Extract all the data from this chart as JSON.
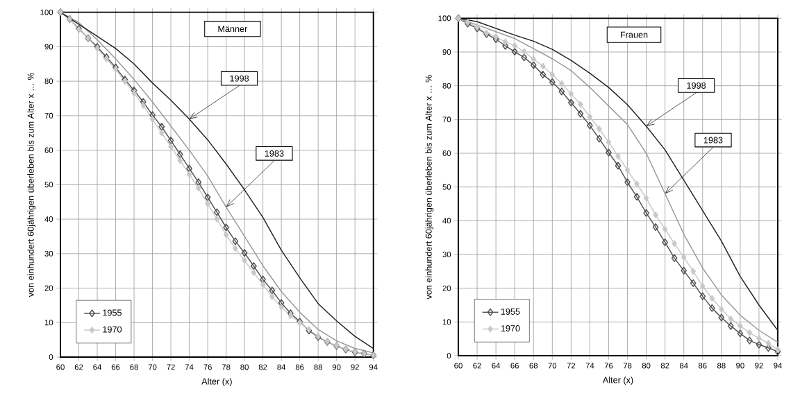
{
  "chart_data": [
    {
      "type": "line",
      "xlabel": "Alter (x)",
      "ylabel": "von einhundert 60jährigen überleben bis zum Alter x … %",
      "xlim": [
        60,
        94
      ],
      "ylim": [
        0,
        100
      ],
      "xticks": [
        60,
        62,
        64,
        66,
        68,
        70,
        72,
        74,
        76,
        78,
        80,
        82,
        84,
        86,
        88,
        90,
        92,
        94
      ],
      "yticks": [
        0,
        10,
        20,
        30,
        40,
        50,
        60,
        70,
        80,
        90,
        100
      ],
      "grid": true,
      "legend": "bottom left",
      "annotations": [
        "Männer",
        {
          "text": "1998",
          "x": 74,
          "y": 69
        },
        {
          "text": "1983",
          "x": 78,
          "y": 43.5
        }
      ],
      "series": [
        {
          "name": "1955",
          "color": "#505050",
          "marker": "diamond",
          "x": [
            60,
            61,
            62,
            63,
            64,
            65,
            66,
            67,
            68,
            69,
            70,
            71,
            72,
            73,
            74,
            75,
            76,
            77,
            78,
            79,
            80,
            81,
            82,
            83,
            84,
            85,
            86,
            87,
            88,
            89,
            90,
            91,
            92,
            93,
            94
          ],
          "values": [
            100,
            98,
            95.2,
            92.5,
            90,
            87,
            84,
            80.5,
            77.3,
            74,
            70.2,
            66.8,
            62.8,
            58.8,
            54.7,
            50.7,
            46.3,
            42,
            37.6,
            33.6,
            30.2,
            26.4,
            22.5,
            19.3,
            15.7,
            12.7,
            10.3,
            7.7,
            5.8,
            4.4,
            3.2,
            2.2,
            1.4,
            1,
            0.5
          ]
        },
        {
          "name": "1970",
          "color": "#c8c8c8",
          "marker": "diamond",
          "x": [
            60,
            61,
            62,
            63,
            64,
            65,
            66,
            67,
            68,
            69,
            70,
            71,
            72,
            73,
            74,
            75,
            76,
            77,
            78,
            79,
            80,
            81,
            82,
            83,
            84,
            85,
            86,
            87,
            88,
            89,
            90,
            91,
            92,
            93,
            94
          ],
          "values": [
            100,
            98,
            95,
            92.5,
            89.5,
            86.5,
            83.5,
            80,
            76.5,
            73,
            69,
            65,
            61,
            57,
            53,
            49,
            44.5,
            40,
            35.5,
            31.5,
            28,
            24.5,
            21,
            17.5,
            14.5,
            12,
            10,
            8,
            6,
            4.5,
            3.3,
            2.3,
            1.5,
            1,
            0.5
          ]
        },
        {
          "color": "#999999",
          "marker": "none",
          "x": [
            60,
            62,
            64,
            66,
            68,
            70,
            72,
            74,
            76,
            78,
            80,
            82,
            84,
            86,
            88,
            90,
            92,
            94
          ],
          "values": [
            100,
            97,
            92,
            86.5,
            80.5,
            74,
            67,
            60,
            52.5,
            43.5,
            35,
            26.5,
            19,
            13,
            8,
            4.7,
            2.5,
            1.2
          ]
        },
        {
          "color": "#222222",
          "marker": "none",
          "x": [
            60,
            62,
            64,
            66,
            68,
            70,
            72,
            74,
            76,
            78,
            80,
            82,
            84,
            86,
            88,
            90,
            92,
            94
          ],
          "values": [
            100,
            96.5,
            93,
            89.5,
            85,
            79.5,
            74.5,
            69,
            63,
            56,
            48.5,
            40.5,
            31,
            23,
            15.5,
            10.5,
            6,
            2.5
          ]
        }
      ]
    },
    {
      "type": "line",
      "xlabel": "Alter (x)",
      "ylabel": "von einhundert 60jährigen überleben bis zum Alter x … %",
      "xlim": [
        60,
        94
      ],
      "ylim": [
        0,
        100
      ],
      "xticks": [
        60,
        62,
        64,
        66,
        68,
        70,
        72,
        74,
        76,
        78,
        80,
        82,
        84,
        86,
        88,
        90,
        92,
        94
      ],
      "yticks": [
        0,
        10,
        20,
        30,
        40,
        50,
        60,
        70,
        80,
        90,
        100
      ],
      "grid": true,
      "legend": "bottom left",
      "annotations": [
        "Frauen",
        {
          "text": "1998",
          "x": 80,
          "y": 68
        },
        {
          "text": "1983",
          "x": 82,
          "y": 48
        }
      ],
      "series": [
        {
          "name": "1955",
          "color": "#505050",
          "marker": "diamond",
          "x": [
            60,
            61,
            62,
            63,
            64,
            65,
            66,
            67,
            68,
            69,
            70,
            71,
            72,
            73,
            74,
            75,
            76,
            77,
            78,
            79,
            80,
            81,
            82,
            83,
            84,
            85,
            86,
            87,
            88,
            89,
            90,
            91,
            92,
            93,
            94
          ],
          "values": [
            100,
            98.4,
            97,
            95.3,
            93.8,
            91.8,
            90.1,
            88.4,
            86.1,
            83.3,
            81.1,
            78.3,
            75,
            71.7,
            68.2,
            64.3,
            60.2,
            56.3,
            51.4,
            47.1,
            42.3,
            38.1,
            33.6,
            28.9,
            25.2,
            21.5,
            17.6,
            14.1,
            11.3,
            8.8,
            6.6,
            4.5,
            3.3,
            2.3,
            1.2
          ]
        },
        {
          "name": "1970",
          "color": "#c8c8c8",
          "marker": "diamond",
          "x": [
            60,
            61,
            62,
            63,
            64,
            65,
            66,
            67,
            68,
            69,
            70,
            71,
            72,
            73,
            74,
            75,
            76,
            77,
            78,
            79,
            80,
            81,
            82,
            83,
            84,
            85,
            86,
            87,
            88,
            89,
            90,
            91,
            92,
            93,
            94
          ],
          "values": [
            100,
            98.8,
            97.3,
            95.6,
            94.5,
            93,
            91.9,
            90.1,
            87.9,
            85.8,
            83.3,
            80.6,
            77.6,
            74.5,
            70.8,
            67.2,
            63.3,
            59.1,
            55,
            50.9,
            46.7,
            41.7,
            37.5,
            33.2,
            29.2,
            25,
            20.6,
            17,
            13.8,
            10.9,
            8.8,
            6.8,
            5.1,
            3.7,
            1.8
          ]
        },
        {
          "color": "#999999",
          "marker": "none",
          "x": [
            60,
            62,
            64,
            66,
            68,
            70,
            72,
            74,
            76,
            78,
            80,
            82,
            84,
            86,
            88,
            90,
            92,
            94
          ],
          "values": [
            100,
            98,
            96,
            94,
            91,
            88,
            84.5,
            79.5,
            74,
            68.5,
            60,
            48,
            36,
            26,
            18,
            12,
            7.5,
            4
          ]
        },
        {
          "color": "#222222",
          "marker": "none",
          "x": [
            60,
            62,
            64,
            66,
            68,
            70,
            72,
            74,
            76,
            78,
            80,
            82,
            84,
            86,
            88,
            90,
            92,
            94
          ],
          "values": [
            100,
            99,
            97,
            95,
            93.2,
            90.8,
            87.5,
            83.7,
            79.5,
            74.4,
            68,
            61,
            52,
            43,
            34,
            23.5,
            15,
            7.5
          ]
        }
      ]
    }
  ]
}
